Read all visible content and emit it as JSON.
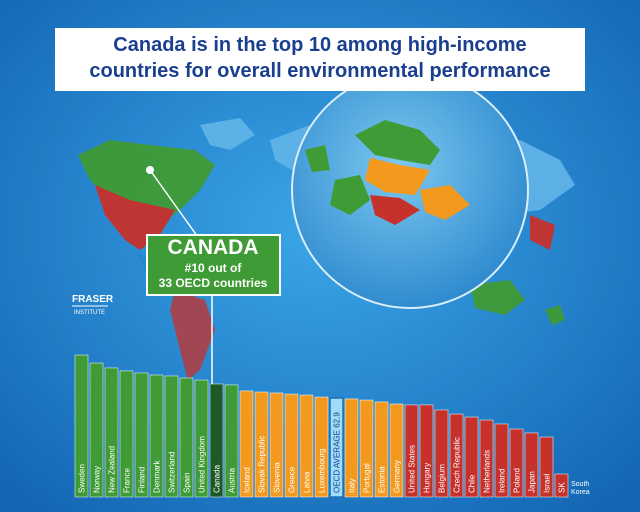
{
  "title": [
    "Canada is in the top 10 among high-income",
    "countries for overall environmental performance"
  ],
  "callout": {
    "name": "CANADA",
    "rank": "#10 out of",
    "detail": "33 OECD countries"
  },
  "logo": {
    "name": "FRASER",
    "sub": "INSTITUTE"
  },
  "chart_data": {
    "type": "bar",
    "categories": [
      "Sweden",
      "Norway",
      "New Zealand",
      "France",
      "Finland",
      "Denmark",
      "Switzerland",
      "Spain",
      "United Kingdom",
      "Canada",
      "Austria",
      "Iceland",
      "Slovak Republic",
      "Slovenia",
      "Greece",
      "Latvia",
      "Luxembourg",
      "OECD AVERAGE 62.9",
      "Italy",
      "Portugal",
      "Estonia",
      "Germany",
      "United States",
      "Hungary",
      "Belgium",
      "Czech Republic",
      "Chile",
      "Netherlands",
      "Ireland",
      "Poland",
      "Japan",
      "Israel",
      "SK"
    ],
    "values": [
      90.2,
      85.1,
      82.0,
      80.1,
      78.8,
      77.5,
      76.9,
      75.6,
      74.3,
      71.8,
      71.2,
      67.4,
      66.7,
      66.1,
      65.4,
      64.8,
      63.5,
      62.9,
      62.3,
      61.6,
      60.4,
      59.1,
      58.5,
      58.5,
      55.3,
      52.7,
      50.8,
      48.9,
      46.4,
      43.2,
      40.7,
      38.1,
      14.6
    ],
    "colors": [
      "#3f9b35",
      "#3f9b35",
      "#3f9b35",
      "#3f9b35",
      "#3f9b35",
      "#3f9b35",
      "#3f9b35",
      "#3f9b35",
      "#3f9b35",
      "#1d5a26",
      "#3f9b35",
      "#f39a1e",
      "#f39a1e",
      "#f39a1e",
      "#f39a1e",
      "#f39a1e",
      "#f39a1e",
      "#9fdcf5",
      "#f39a1e",
      "#f39a1e",
      "#f39a1e",
      "#f39a1e",
      "#c7312b",
      "#c7312b",
      "#c7312b",
      "#c7312b",
      "#c7312b",
      "#c7312b",
      "#c7312b",
      "#c7312b",
      "#c7312b",
      "#c7312b",
      "#c7312b"
    ],
    "annotation": "South Korea"
  }
}
